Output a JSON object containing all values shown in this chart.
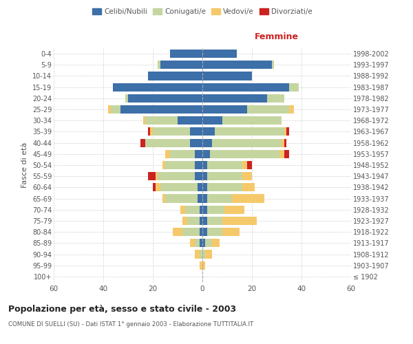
{
  "age_groups": [
    "100+",
    "95-99",
    "90-94",
    "85-89",
    "80-84",
    "75-79",
    "70-74",
    "65-69",
    "60-64",
    "55-59",
    "50-54",
    "45-49",
    "40-44",
    "35-39",
    "30-34",
    "25-29",
    "20-24",
    "15-19",
    "10-14",
    "5-9",
    "0-4"
  ],
  "birth_years": [
    "≤ 1902",
    "1903-1907",
    "1908-1912",
    "1913-1917",
    "1918-1922",
    "1923-1927",
    "1928-1932",
    "1933-1937",
    "1938-1942",
    "1943-1947",
    "1948-1952",
    "1953-1957",
    "1958-1962",
    "1963-1967",
    "1968-1972",
    "1973-1977",
    "1978-1982",
    "1983-1987",
    "1988-1992",
    "1993-1997",
    "1998-2002"
  ],
  "male": {
    "celibi": [
      0,
      0,
      0,
      1,
      1,
      1,
      1,
      2,
      2,
      3,
      3,
      3,
      5,
      5,
      10,
      33,
      30,
      36,
      22,
      17,
      13
    ],
    "coniugati": [
      0,
      0,
      1,
      2,
      7,
      5,
      6,
      13,
      15,
      15,
      12,
      10,
      18,
      15,
      13,
      4,
      1,
      0,
      0,
      1,
      0
    ],
    "vedovi": [
      0,
      1,
      2,
      2,
      4,
      2,
      2,
      1,
      2,
      1,
      1,
      2,
      0,
      1,
      1,
      1,
      0,
      0,
      0,
      0,
      0
    ],
    "divorziati": [
      0,
      0,
      0,
      0,
      0,
      0,
      0,
      0,
      1,
      3,
      0,
      0,
      2,
      1,
      0,
      0,
      0,
      0,
      0,
      0,
      0
    ]
  },
  "female": {
    "nubili": [
      0,
      0,
      0,
      1,
      2,
      2,
      2,
      2,
      2,
      2,
      2,
      3,
      4,
      5,
      8,
      18,
      26,
      35,
      20,
      28,
      14
    ],
    "coniugate": [
      0,
      0,
      1,
      3,
      6,
      6,
      7,
      10,
      14,
      14,
      14,
      28,
      28,
      28,
      24,
      17,
      7,
      4,
      0,
      1,
      0
    ],
    "vedove": [
      0,
      1,
      3,
      3,
      7,
      14,
      8,
      13,
      5,
      4,
      2,
      2,
      1,
      1,
      0,
      2,
      0,
      0,
      0,
      0,
      0
    ],
    "divorziate": [
      0,
      0,
      0,
      0,
      0,
      0,
      0,
      0,
      0,
      0,
      2,
      2,
      1,
      1,
      0,
      0,
      0,
      0,
      0,
      0,
      0
    ]
  },
  "colors": {
    "celibi": "#3d6fa8",
    "coniugati": "#c5d5a0",
    "vedovi": "#f5c96a",
    "divorziati": "#cc2222"
  },
  "xlim": 60,
  "title": "Popolazione per età, sesso e stato civile - 2003",
  "subtitle": "COMUNE DI SUELLI (SU) - Dati ISTAT 1° gennaio 2003 - Elaborazione TUTTITALIA.IT",
  "ylabel_left": "Fasce di età",
  "xlabel_female": "Femmine",
  "bg_color": "#ffffff",
  "grid_color": "#cccccc"
}
